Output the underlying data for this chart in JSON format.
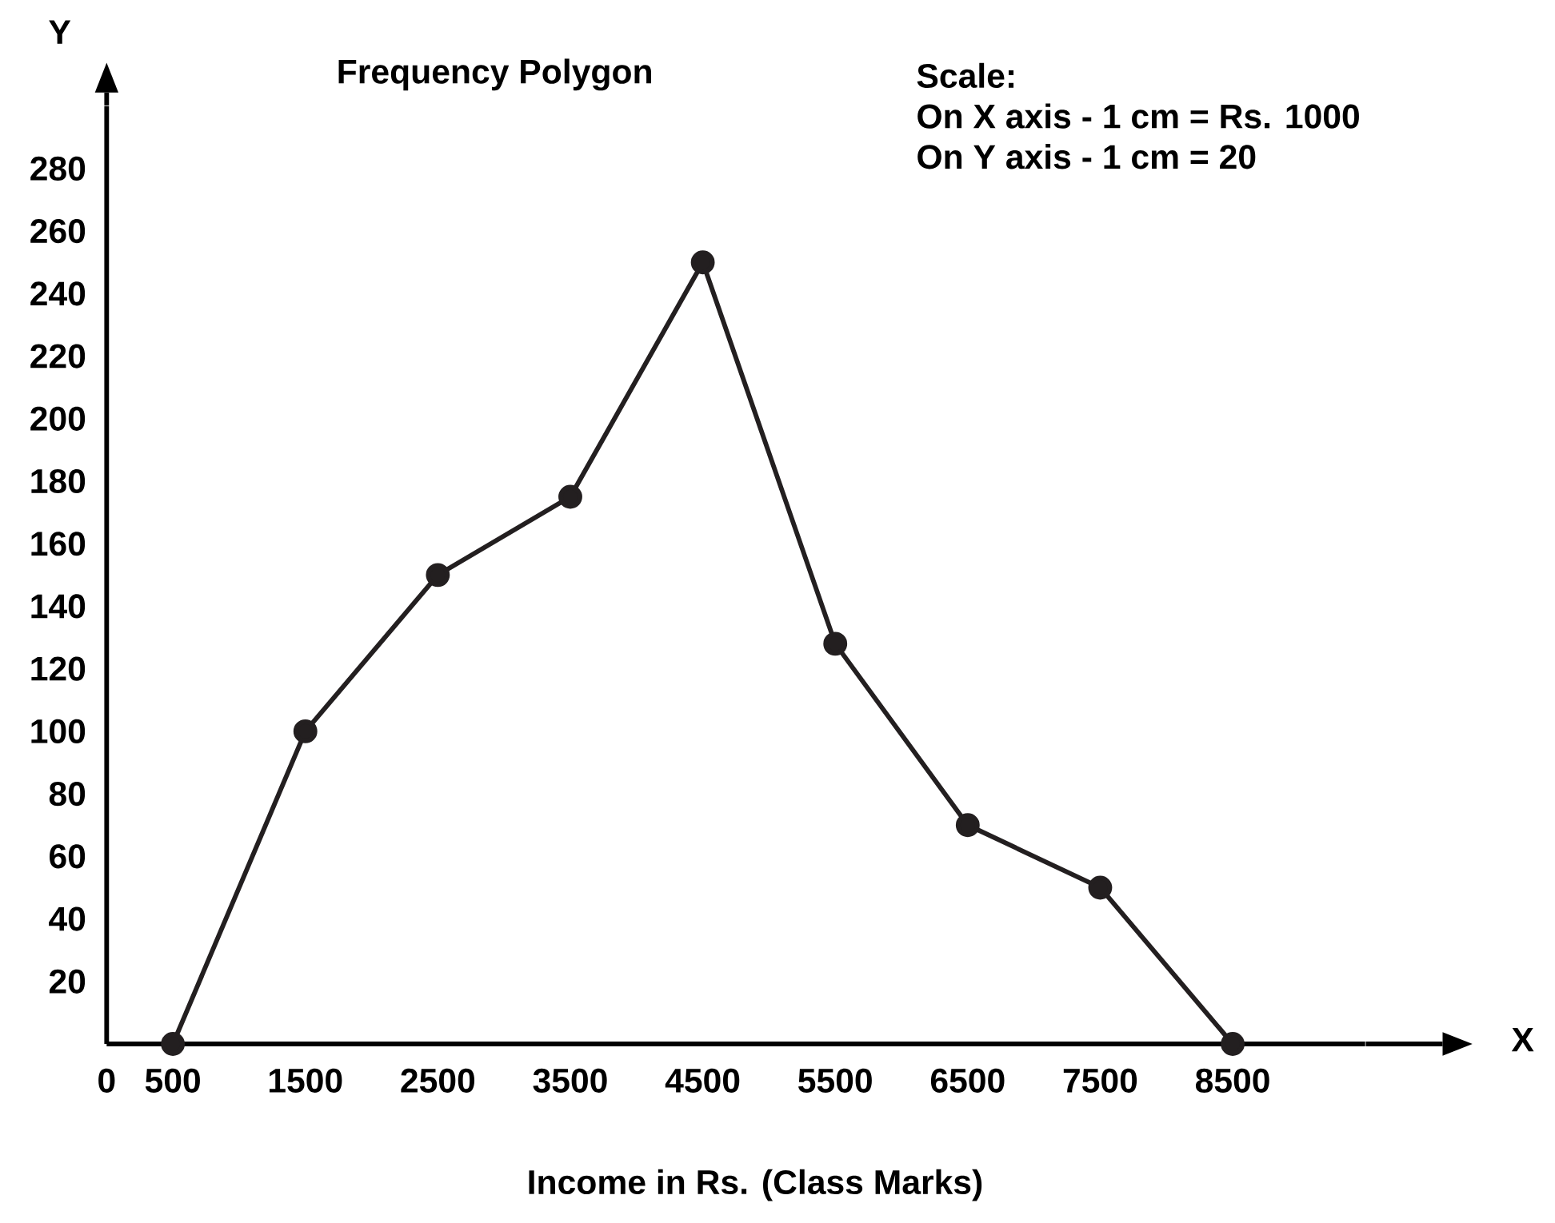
{
  "chart_data": {
    "type": "line",
    "title": "Frequency Polygon",
    "xlabel": "Income in Rs. (Class Marks)",
    "ylabel": "Y",
    "annotations": [
      "Scale:",
      "On X axis - 1 cm = Rs. 1000",
      "On Y axis - 1 cm = 20",
      "X"
    ],
    "x": [
      500,
      1500,
      2500,
      3500,
      4500,
      5500,
      6500,
      7500,
      8500
    ],
    "series": [
      {
        "color": "#231f20",
        "values": [
          0,
          100,
          150,
          175,
          250,
          128,
          70,
          50,
          0
        ]
      }
    ],
    "xlim": [
      0,
      9500
    ],
    "ylim": [
      0,
      300
    ],
    "xticks": [
      0,
      500,
      1500,
      2500,
      3500,
      4500,
      5500,
      6500,
      7500,
      8500
    ],
    "yticks": [
      20,
      40,
      60,
      80,
      100,
      120,
      140,
      160,
      180,
      200,
      220,
      240,
      260,
      280
    ],
    "marker": "circle",
    "line_style": "solid",
    "grid": false
  }
}
